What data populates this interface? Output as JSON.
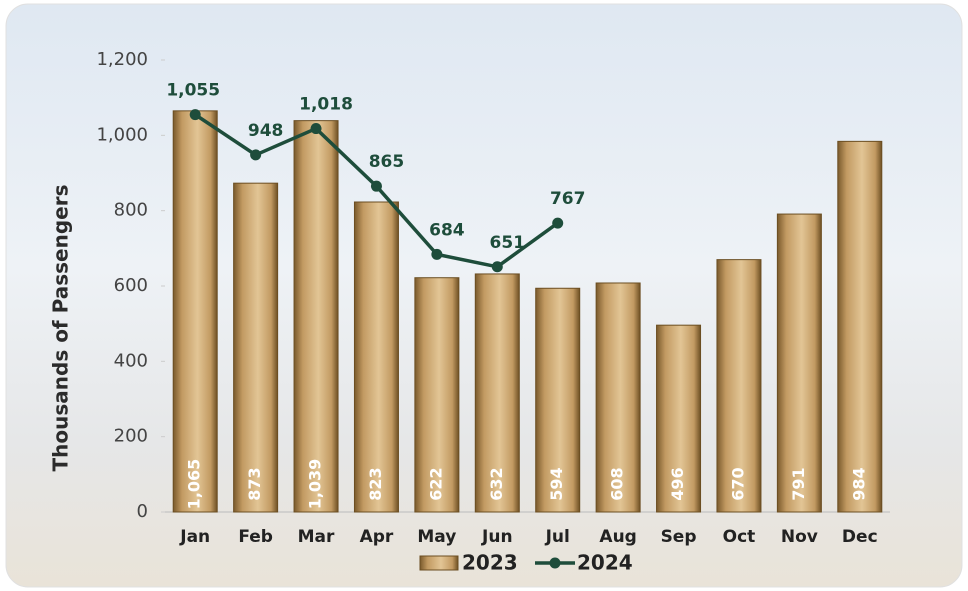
{
  "chart_data": {
    "type": "bar",
    "y_label": "Thousands of Passengers",
    "categories": [
      "Jan",
      "Feb",
      "Mar",
      "Apr",
      "May",
      "Jun",
      "Jul",
      "Aug",
      "Sep",
      "Oct",
      "Nov",
      "Dec"
    ],
    "series": [
      {
        "name": "2023",
        "type": "bar",
        "color": "#c29a62",
        "values": [
          1065,
          873,
          1039,
          823,
          622,
          632,
          594,
          608,
          496,
          670,
          791,
          984
        ],
        "value_labels": [
          "1,065",
          "873",
          "1,039",
          "823",
          "622",
          "632",
          "594",
          "608",
          "496",
          "670",
          "791",
          "984"
        ]
      },
      {
        "name": "2024",
        "type": "line",
        "color": "#1e4d3b",
        "values": [
          1055,
          948,
          1018,
          865,
          684,
          651,
          767,
          null,
          null,
          null,
          null,
          null
        ],
        "value_labels": [
          "1,055",
          "948",
          "1,018",
          "865",
          "684",
          "651",
          "767",
          null,
          null,
          null,
          null,
          null
        ]
      }
    ],
    "ylim": [
      0,
      1200
    ],
    "yticks": [
      0,
      200,
      400,
      600,
      800,
      {
        "value": 1000,
        "label": "1,000"
      },
      {
        "value": 1200,
        "label": "1,200"
      }
    ],
    "grid": false,
    "legend": "bottom"
  }
}
